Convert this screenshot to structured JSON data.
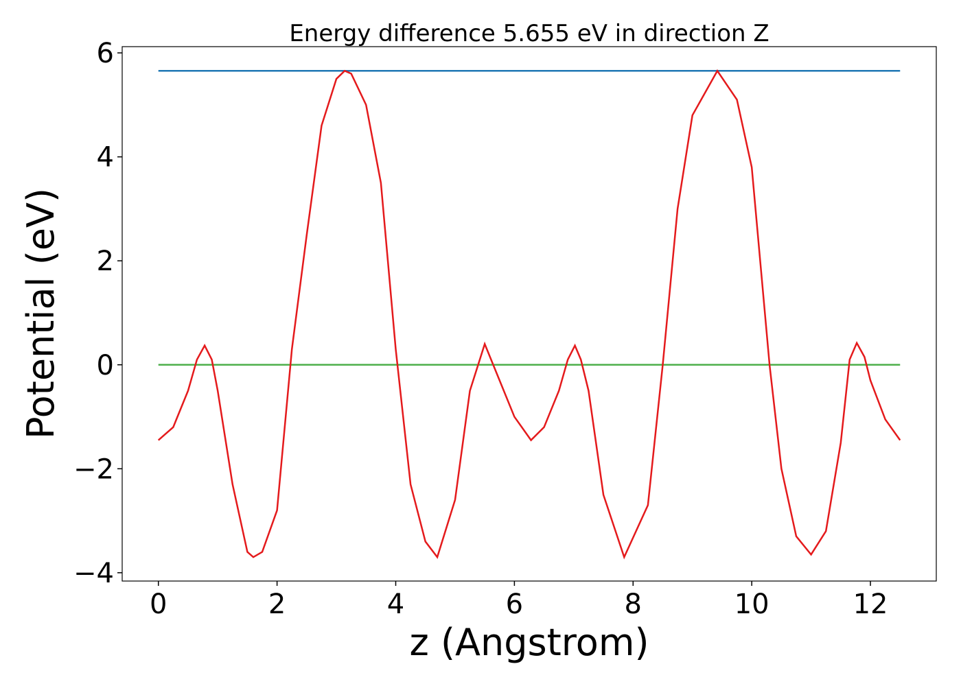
{
  "chart_data": {
    "type": "line",
    "title": "Energy difference 5.655 eV in direction Z",
    "x_label": "z (Angstrom)",
    "y_label": "Potential (eV)",
    "xlim": [
      -0.61,
      13.11
    ],
    "ylim": [
      -4.16,
      6.12
    ],
    "xticks": [
      0,
      2,
      4,
      6,
      8,
      10,
      12
    ],
    "yticks": [
      {
        "value": -4,
        "label": "−4"
      },
      {
        "value": -2,
        "label": "−2"
      },
      0,
      2,
      4,
      6
    ],
    "grid": false,
    "series": [
      {
        "color": "#e41a1c",
        "x": [
          0,
          0.25,
          0.5,
          0.65,
          0.78,
          0.9,
          1.0,
          1.25,
          1.5,
          1.6,
          1.75,
          2.0,
          2.25,
          2.5,
          2.75,
          3.0,
          3.14,
          3.25,
          3.5,
          3.75,
          4.0,
          4.25,
          4.5,
          4.7,
          5.0,
          5.25,
          5.5,
          5.75,
          6.0,
          6.28,
          6.5,
          6.75,
          6.9,
          7.02,
          7.12,
          7.25,
          7.5,
          7.85,
          8.25,
          8.5,
          8.75,
          9.0,
          9.42,
          9.75,
          10.0,
          10.3,
          10.5,
          10.75,
          11.0,
          11.25,
          11.5,
          11.65,
          11.77,
          11.9,
          12.0,
          12.25,
          12.5
        ],
        "values": [
          -1.45,
          -1.2,
          -0.5,
          0.1,
          0.37,
          0.1,
          -0.5,
          -2.3,
          -3.6,
          -3.7,
          -3.6,
          -2.8,
          0.3,
          2.5,
          4.6,
          5.5,
          5.655,
          5.6,
          5.0,
          3.5,
          0.3,
          -2.3,
          -3.4,
          -3.7,
          -2.6,
          -0.5,
          0.4,
          -0.3,
          -1.0,
          -1.45,
          -1.2,
          -0.5,
          0.1,
          0.37,
          0.1,
          -0.5,
          -2.5,
          -3.7,
          -2.7,
          0.0,
          3.0,
          4.8,
          5.655,
          5.1,
          3.8,
          0.0,
          -2.0,
          -3.3,
          -3.65,
          -3.2,
          -1.5,
          0.1,
          0.42,
          0.15,
          -0.3,
          -1.05,
          -1.45
        ]
      },
      {
        "color": "#1f77b4",
        "x": [
          0,
          12.5
        ],
        "values": [
          5.655,
          5.655
        ]
      },
      {
        "color": "#4daf4a",
        "x": [
          0,
          12.5
        ],
        "values": [
          0,
          0
        ]
      }
    ]
  }
}
